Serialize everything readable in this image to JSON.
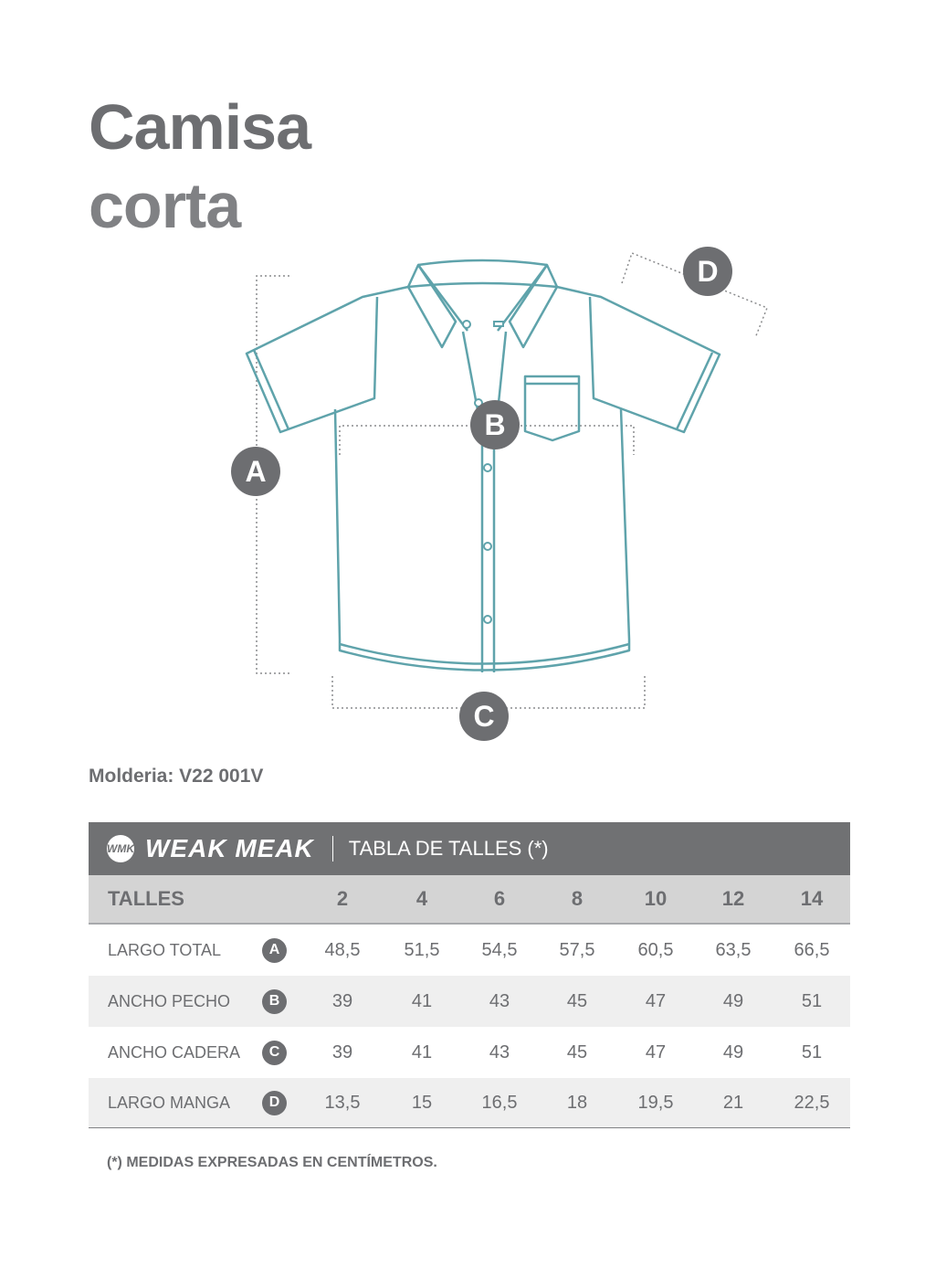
{
  "title_line1": "Camisa",
  "title_line2": "corta",
  "badges": {
    "a": "A",
    "b": "B",
    "c": "C",
    "d": "D"
  },
  "molderia": "Molderia: V22 001V",
  "table": {
    "brand": "WEAK MEAK",
    "logo_text": "WMK",
    "title": "TABLA DE TALLES (*)",
    "header_label": "TALLES",
    "sizes": [
      "2",
      "4",
      "6",
      "8",
      "10",
      "12",
      "14"
    ],
    "rows": [
      {
        "label": "LARGO TOTAL",
        "badge": "A",
        "values": [
          "48,5",
          "51,5",
          "54,5",
          "57,5",
          "60,5",
          "63,5",
          "66,5"
        ]
      },
      {
        "label": "ANCHO PECHO",
        "badge": "B",
        "values": [
          "39",
          "41",
          "43",
          "45",
          "47",
          "49",
          "51"
        ]
      },
      {
        "label": "ANCHO CADERA",
        "badge": "C",
        "values": [
          "39",
          "41",
          "43",
          "45",
          "47",
          "49",
          "51"
        ]
      },
      {
        "label": "LARGO MANGA",
        "badge": "D",
        "values": [
          "13,5",
          "15",
          "16,5",
          "18",
          "19,5",
          "21",
          "22,5"
        ]
      }
    ]
  },
  "note": "(*) MEDIDAS EXPRESADAS EN CENTÍMETROS.",
  "colors": {
    "shirt_line": "#5fa3ab",
    "gray": "#6d6e71",
    "header": "#707173"
  }
}
